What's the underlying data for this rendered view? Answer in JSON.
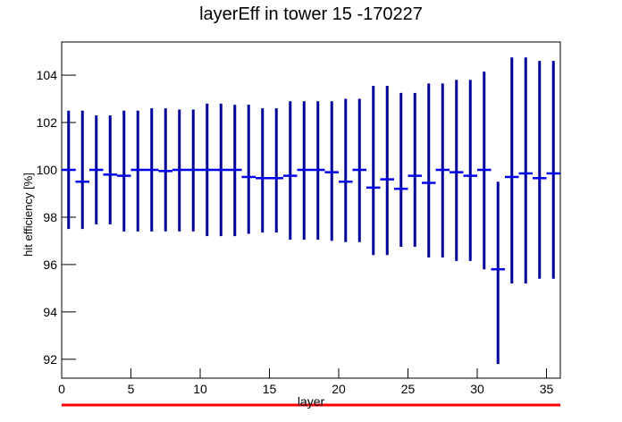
{
  "chart_data": {
    "type": "errorbar",
    "title": "layerEff in tower 15 -170227",
    "x_label": "layer",
    "y_label": "hit efficiency [%]",
    "bar_color": "#00009c",
    "marker_color": "#0000ee",
    "xlim": [
      0,
      36
    ],
    "xticks": [
      0,
      5,
      10,
      15,
      20,
      25,
      30,
      35
    ],
    "ylim": [
      91.2,
      105.4
    ],
    "yticks": [
      92,
      94,
      96,
      98,
      100,
      102,
      104
    ],
    "x": [
      0.5,
      1.5,
      2.5,
      3.5,
      4.5,
      5.5,
      6.5,
      7.5,
      8.5,
      9.5,
      10.5,
      11.5,
      12.5,
      13.5,
      14.5,
      15.5,
      16.5,
      17.5,
      18.5,
      19.5,
      20.5,
      21.5,
      22.5,
      23.5,
      24.5,
      25.5,
      26.5,
      27.5,
      28.5,
      29.5,
      30.5,
      31.5,
      32.5,
      33.5,
      34.5,
      35.5
    ],
    "values": [
      100,
      99.5,
      100,
      99.8,
      99.75,
      100,
      100,
      99.95,
      100,
      100,
      100,
      100,
      100,
      99.7,
      99.65,
      99.65,
      99.75,
      100,
      100,
      99.9,
      99.5,
      100,
      99.25,
      99.6,
      99.2,
      99.75,
      99.45,
      100,
      99.9,
      99.75,
      100,
      95.8,
      99.7,
      99.85,
      99.65,
      99.85
    ],
    "y_high": [
      102.5,
      102.5,
      102.3,
      102.3,
      102.5,
      102.5,
      102.6,
      102.6,
      102.55,
      102.55,
      102.8,
      102.8,
      102.75,
      102.75,
      102.6,
      102.6,
      102.9,
      102.9,
      102.9,
      102.9,
      103.0,
      103.0,
      103.55,
      103.55,
      103.25,
      103.25,
      103.65,
      103.65,
      103.8,
      103.8,
      104.15,
      99.5,
      104.75,
      104.75,
      104.6,
      104.6
    ],
    "y_low": [
      97.5,
      97.5,
      97.7,
      97.7,
      97.4,
      97.4,
      97.4,
      97.4,
      97.4,
      97.4,
      97.2,
      97.2,
      97.2,
      97.3,
      97.35,
      97.35,
      97.05,
      97.05,
      97.05,
      97.0,
      96.95,
      96.95,
      96.4,
      96.4,
      96.75,
      96.75,
      96.3,
      96.3,
      96.15,
      96.15,
      95.8,
      91.8,
      95.2,
      95.2,
      95.4,
      95.4
    ]
  }
}
